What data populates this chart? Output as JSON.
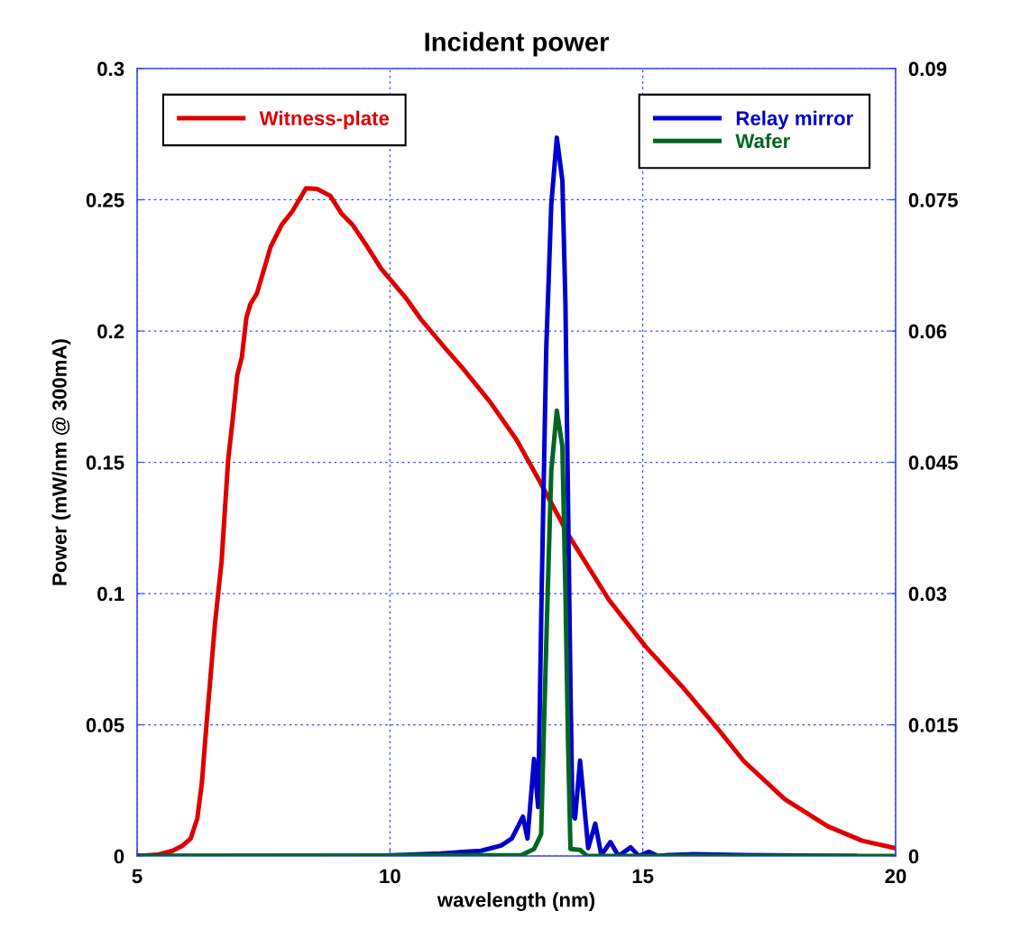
{
  "chart_data": {
    "type": "line",
    "title": "Incident power",
    "xlabel": "wavelength (nm)",
    "ylabel": "Power (mW/nm @ 300mA)",
    "xlim": [
      5,
      20
    ],
    "xticks": [
      5,
      10,
      15,
      20
    ],
    "ylim": [
      0,
      0.3
    ],
    "yticks": [
      0,
      0.05,
      0.1,
      0.15,
      0.2,
      0.25,
      0.3
    ],
    "y2lim": [
      0,
      0.09
    ],
    "y2ticks": [
      0,
      0.015,
      0.03,
      0.045,
      0.06,
      0.075,
      0.09
    ],
    "grid": true,
    "legend": "top",
    "marker": "none",
    "line_style": "solid",
    "series": [
      {
        "name": "Witness-plate",
        "color": "#dd0000",
        "x": [
          5,
          5.4,
          5.7,
          5.9,
          6.06,
          6.19,
          6.28,
          6.37,
          6.54,
          6.67,
          6.8,
          6.89,
          6.98,
          7.07,
          7.16,
          7.24,
          7.37,
          7.64,
          7.86,
          8.07,
          8.34,
          8.56,
          8.82,
          9.04,
          9.26,
          9.52,
          9.83,
          10.31,
          10.62,
          11.1,
          11.41,
          11.98,
          12.5,
          12.94,
          13.53,
          14.33,
          15.06,
          15.79,
          16.47,
          17.0,
          17.81,
          18.66,
          19.34,
          20
        ],
        "values": [
          0,
          0.0005,
          0.002,
          0.004,
          0.0067,
          0.0143,
          0.0278,
          0.0497,
          0.0886,
          0.1122,
          0.151,
          0.1663,
          0.1832,
          0.1899,
          0.2051,
          0.2102,
          0.2144,
          0.2321,
          0.2405,
          0.2456,
          0.2544,
          0.2541,
          0.2515,
          0.2448,
          0.2405,
          0.233,
          0.2237,
          0.2127,
          0.2043,
          0.1933,
          0.1865,
          0.173,
          0.1587,
          0.1435,
          0.1223,
          0.0976,
          0.0797,
          0.0643,
          0.0488,
          0.0361,
          0.0216,
          0.0113,
          0.0058,
          0.003
        ]
      },
      {
        "name": "Relay mirror",
        "color": "#0000cc",
        "axis": "y2",
        "x": [
          5,
          9.7,
          11,
          11.8,
          12.2,
          12.41,
          12.63,
          12.72,
          12.85,
          12.93,
          13.0,
          13.09,
          13.19,
          13.3,
          13.41,
          13.47,
          13.52,
          13.57,
          13.61,
          13.66,
          13.76,
          13.92,
          14.06,
          14.18,
          14.36,
          14.52,
          14.76,
          14.92,
          15.12,
          15.3,
          15.49,
          16,
          17,
          19.2
        ],
        "values": [
          0,
          0,
          0.0003,
          0.0006,
          0.0012,
          0.002,
          0.0045,
          0.002,
          0.0111,
          0.0056,
          0.0302,
          0.0578,
          0.0744,
          0.0821,
          0.0772,
          0.0633,
          0.0412,
          0.0191,
          0.0047,
          0.0043,
          0.0109,
          0.0009,
          0.0037,
          0.0001,
          0.0016,
          0,
          0.001,
          0,
          0.0005,
          0,
          0.0001,
          0.0002,
          0.0001,
          0
        ]
      },
      {
        "name": "Wafer",
        "color": "#006622",
        "axis": "y2",
        "x": [
          5,
          12.6,
          12.85,
          12.99,
          13.04,
          13.12,
          13.19,
          13.3,
          13.41,
          13.47,
          13.52,
          13.57,
          13.76,
          13.9,
          20
        ],
        "values": [
          0,
          0.0001,
          0.0008,
          0.0025,
          0.0136,
          0.0302,
          0.044,
          0.0509,
          0.0468,
          0.0302,
          0.0136,
          0.0008,
          0.0007,
          0,
          0
        ]
      }
    ]
  }
}
